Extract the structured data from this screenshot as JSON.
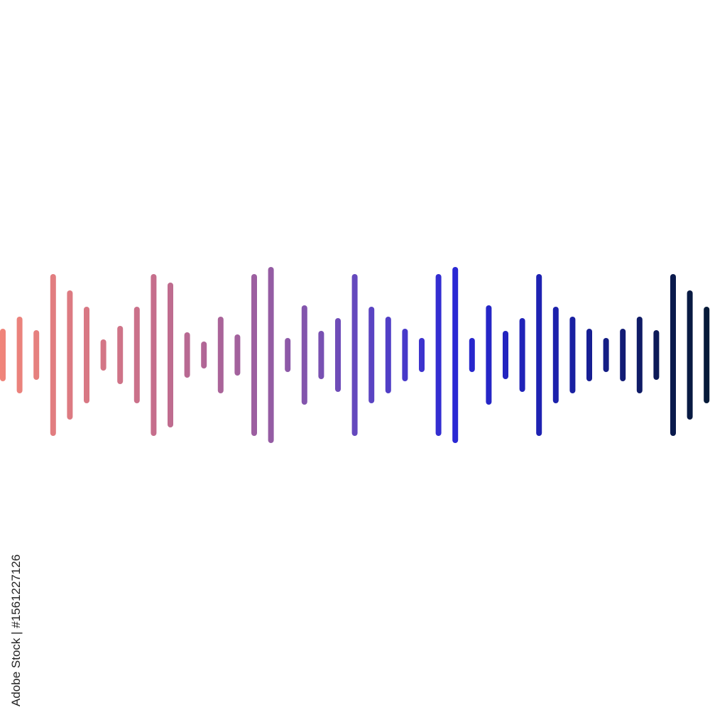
{
  "credit": "Adobe Stock | #1561227126"
}
